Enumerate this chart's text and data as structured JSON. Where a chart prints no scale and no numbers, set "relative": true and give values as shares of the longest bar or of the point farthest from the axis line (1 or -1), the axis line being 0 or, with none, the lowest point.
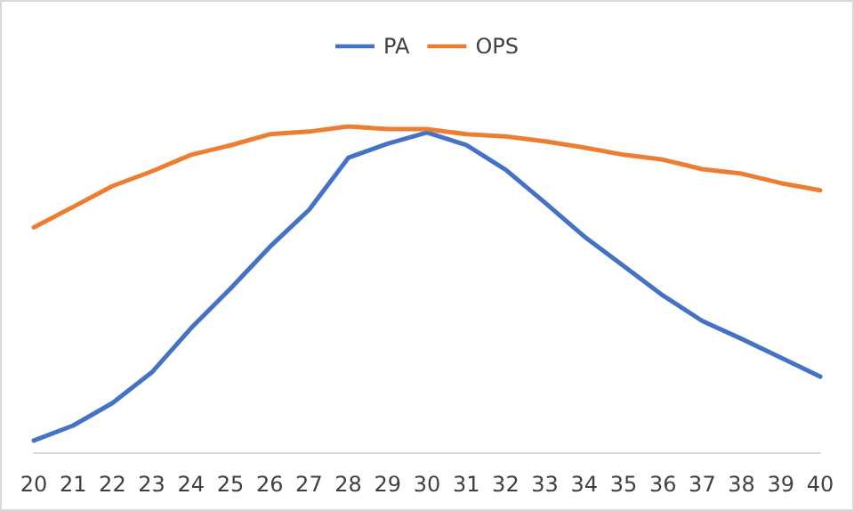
{
  "chart_data": {
    "type": "line",
    "relative": true,
    "categories": [
      "20",
      "21",
      "22",
      "23",
      "24",
      "25",
      "26",
      "27",
      "28",
      "29",
      "30",
      "31",
      "32",
      "33",
      "34",
      "35",
      "36",
      "37",
      "38",
      "39",
      "40"
    ],
    "series": [
      {
        "name": "PA",
        "color": "#4472c4",
        "values": [
          0.036,
          0.082,
          0.151,
          0.245,
          0.381,
          0.502,
          0.63,
          0.744,
          0.904,
          0.947,
          0.981,
          0.943,
          0.867,
          0.766,
          0.662,
          0.572,
          0.481,
          0.403,
          0.348,
          0.29,
          0.232
        ]
      },
      {
        "name": "OPS",
        "color": "#ed7d31",
        "values": [
          0.69,
          0.753,
          0.817,
          0.862,
          0.913,
          0.942,
          0.976,
          0.984,
          1,
          0.992,
          0.992,
          0.976,
          0.969,
          0.954,
          0.935,
          0.913,
          0.898,
          0.869,
          0.855,
          0.826,
          0.804
        ]
      }
    ],
    "legend": "top",
    "grid": false,
    "marker": "none",
    "line_style": "solid"
  }
}
